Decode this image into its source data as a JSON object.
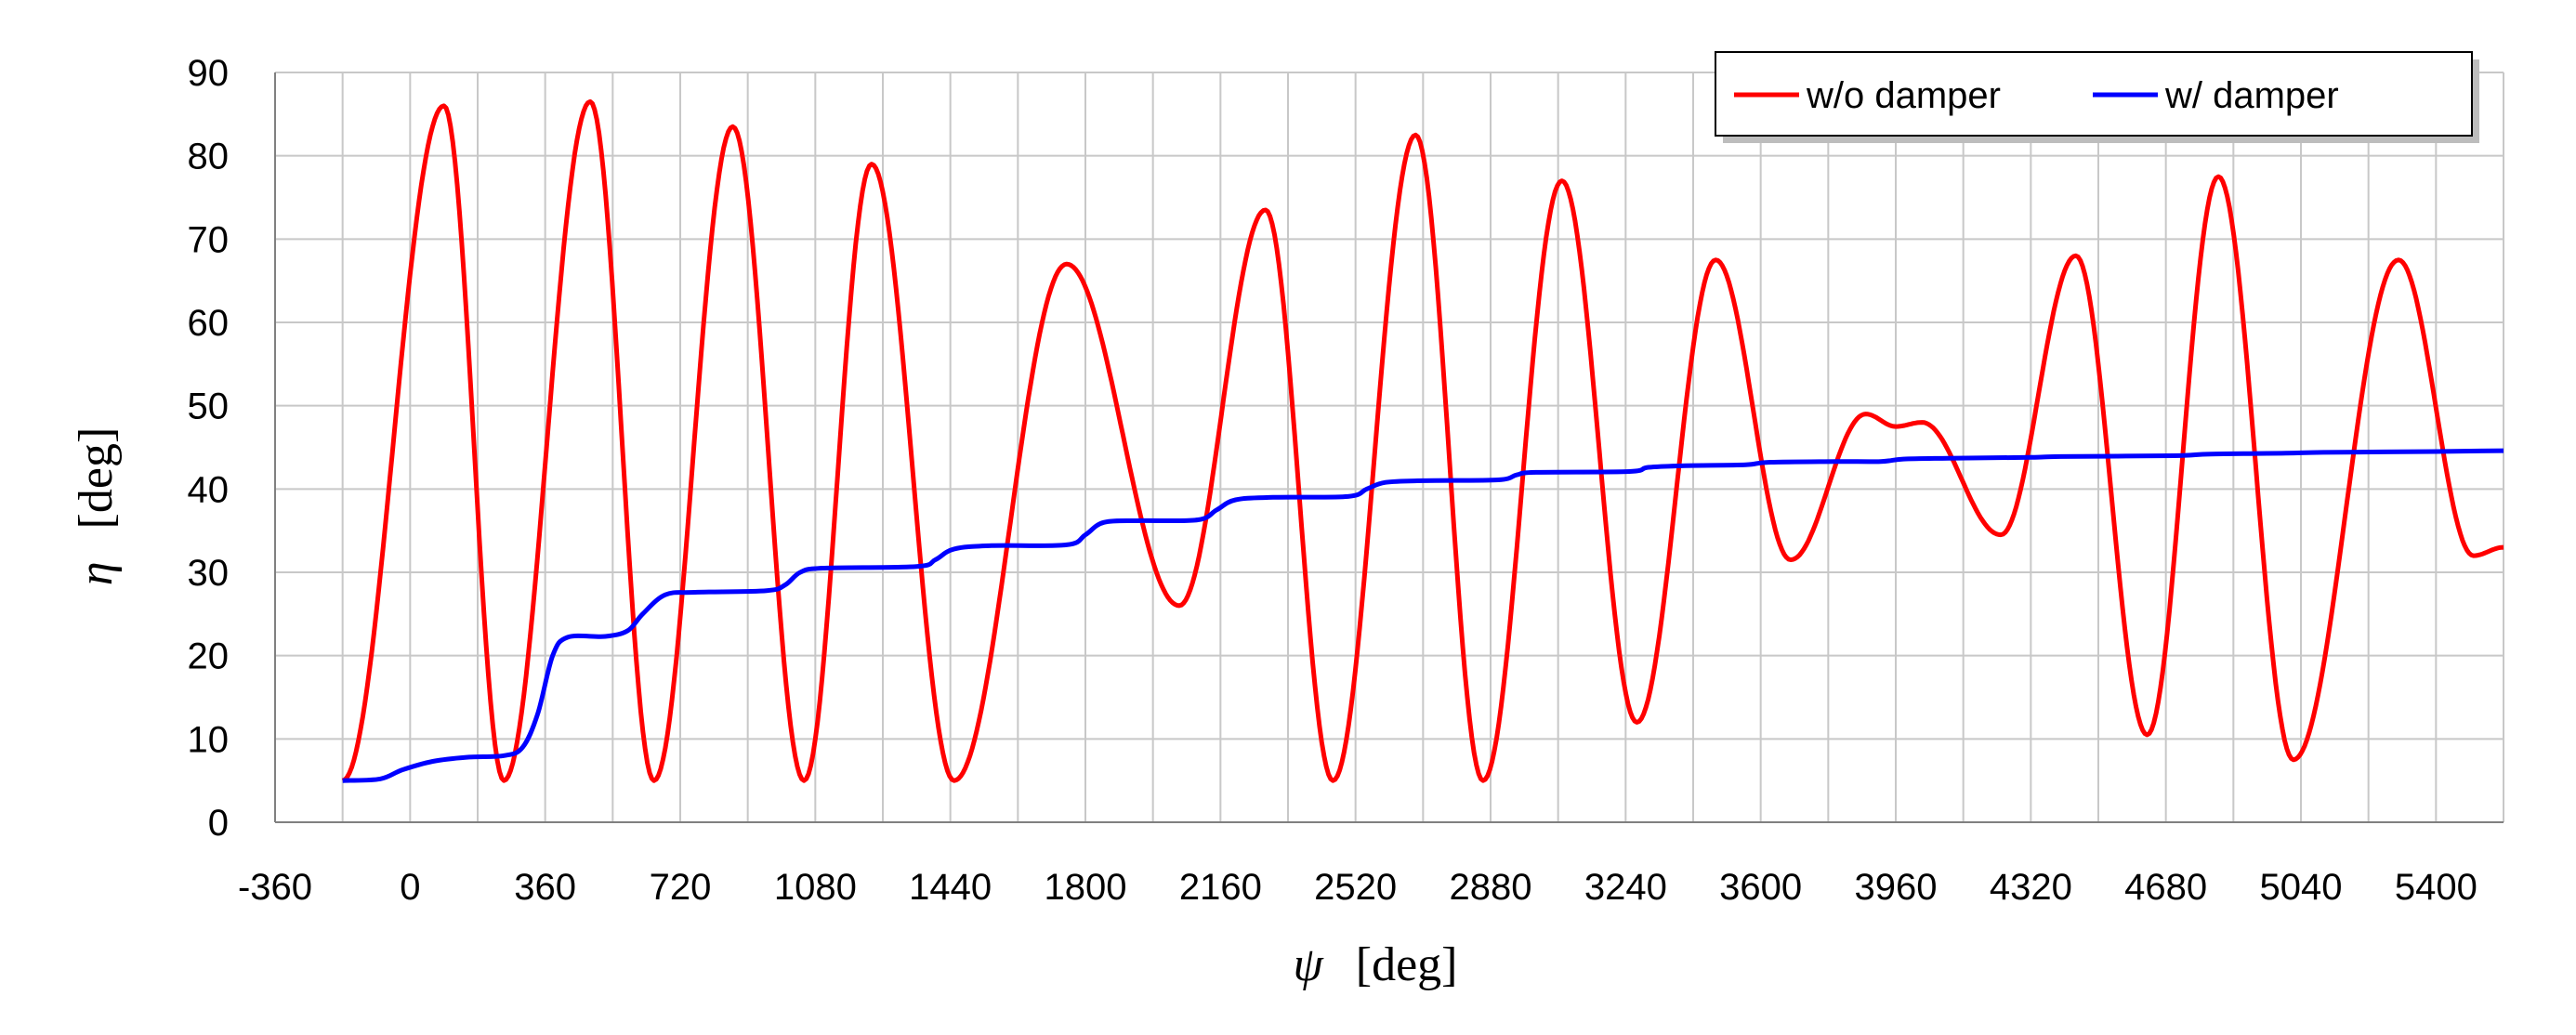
{
  "chart_data": {
    "type": "line",
    "title": "",
    "xlabel_symbol": "ψ",
    "xlabel_unit": "[deg]",
    "ylabel_symbol": "η",
    "ylabel_unit": "[deg]",
    "xlim": [
      -360,
      5580
    ],
    "ylim": [
      0,
      90
    ],
    "x_ticks": [
      -360,
      0,
      360,
      720,
      1080,
      1440,
      1800,
      2160,
      2520,
      2880,
      3240,
      3600,
      3960,
      4320,
      4680,
      5040,
      5400
    ],
    "x_gridlines": [
      -360,
      -180,
      0,
      180,
      360,
      540,
      720,
      900,
      1080,
      1260,
      1440,
      1620,
      1800,
      1980,
      2160,
      2340,
      2520,
      2700,
      2880,
      3060,
      3240,
      3420,
      3600,
      3780,
      3960,
      4140,
      4320,
      4500,
      4680,
      4860,
      5040,
      5220,
      5400,
      5580
    ],
    "y_ticks": [
      0,
      10,
      20,
      30,
      40,
      50,
      60,
      70,
      80,
      90
    ],
    "grid": true,
    "legend_position": "top-right",
    "series": [
      {
        "name": "w/o damper",
        "color": "#ff0000",
        "extrema": [
          [
            -180,
            5
          ],
          [
            90,
            86
          ],
          [
            250,
            5
          ],
          [
            480,
            86.5
          ],
          [
            650,
            5
          ],
          [
            860,
            83.5
          ],
          [
            1050,
            5
          ],
          [
            1230,
            79
          ],
          [
            1450,
            5
          ],
          [
            1750,
            67
          ],
          [
            2050,
            26
          ],
          [
            2280,
            73.5
          ],
          [
            2460,
            5
          ],
          [
            2680,
            82.5
          ],
          [
            2860,
            5
          ],
          [
            3070,
            77
          ],
          [
            3270,
            12
          ],
          [
            3480,
            67.5
          ],
          [
            3680,
            31.5
          ],
          [
            3880,
            49
          ],
          [
            3960,
            47.5
          ],
          [
            4030,
            48
          ],
          [
            4240,
            34.5
          ],
          [
            4440,
            68
          ],
          [
            4630,
            10.5
          ],
          [
            4820,
            77.5
          ],
          [
            5020,
            7.5
          ],
          [
            5300,
            67.5
          ],
          [
            5500,
            32
          ],
          [
            5580,
            33
          ]
        ]
      },
      {
        "name": "w/ damper",
        "color": "#0000ff",
        "points": [
          [
            -180,
            5
          ],
          [
            -80,
            5.2
          ],
          [
            -20,
            6.3
          ],
          [
            60,
            7.3
          ],
          [
            150,
            7.8
          ],
          [
            250,
            8
          ],
          [
            300,
            9
          ],
          [
            340,
            13
          ],
          [
            380,
            20
          ],
          [
            420,
            22.2
          ],
          [
            520,
            22.3
          ],
          [
            580,
            23
          ],
          [
            620,
            25
          ],
          [
            680,
            27.3
          ],
          [
            760,
            27.6
          ],
          [
            950,
            27.8
          ],
          [
            1000,
            28.5
          ],
          [
            1040,
            30
          ],
          [
            1100,
            30.5
          ],
          [
            1350,
            30.7
          ],
          [
            1400,
            31.5
          ],
          [
            1450,
            32.8
          ],
          [
            1550,
            33.2
          ],
          [
            1750,
            33.3
          ],
          [
            1800,
            34.5
          ],
          [
            1850,
            36
          ],
          [
            1950,
            36.2
          ],
          [
            2100,
            36.3
          ],
          [
            2150,
            37.5
          ],
          [
            2200,
            38.7
          ],
          [
            2300,
            39
          ],
          [
            2500,
            39.1
          ],
          [
            2550,
            40
          ],
          [
            2600,
            40.8
          ],
          [
            2700,
            41
          ],
          [
            2900,
            41.1
          ],
          [
            2950,
            41.7
          ],
          [
            3000,
            42
          ],
          [
            3250,
            42.1
          ],
          [
            3300,
            42.6
          ],
          [
            3400,
            42.8
          ],
          [
            3560,
            42.9
          ],
          [
            3620,
            43.2
          ],
          [
            3800,
            43.3
          ],
          [
            3920,
            43.3
          ],
          [
            3980,
            43.6
          ],
          [
            4100,
            43.7
          ],
          [
            4320,
            43.8
          ],
          [
            4400,
            43.9
          ],
          [
            4700,
            44
          ],
          [
            4800,
            44.2
          ],
          [
            5000,
            44.3
          ],
          [
            5100,
            44.4
          ],
          [
            5400,
            44.5
          ],
          [
            5580,
            44.6
          ]
        ]
      }
    ]
  }
}
